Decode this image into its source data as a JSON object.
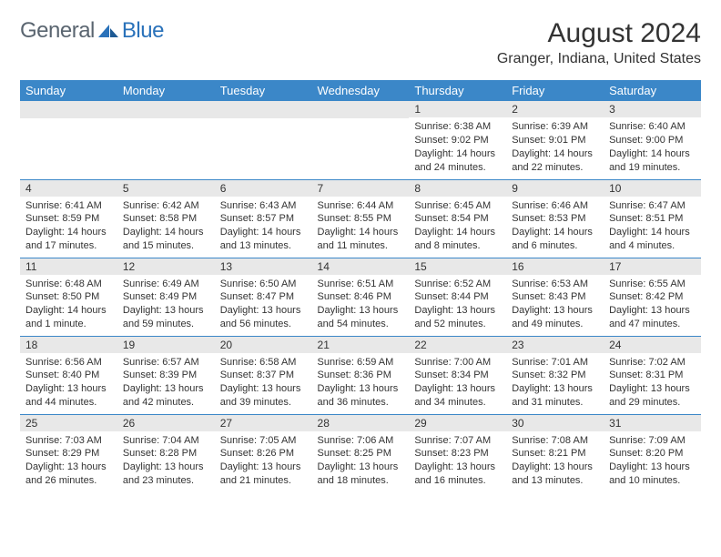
{
  "brand": {
    "general": "General",
    "blue": "Blue"
  },
  "title": "August 2024",
  "location": "Granger, Indiana, United States",
  "header_bg": "#3b87c8",
  "header_fg": "#ffffff",
  "daynum_bg": "#e8e8e8",
  "border_color": "#3b87c8",
  "days_of_week": [
    "Sunday",
    "Monday",
    "Tuesday",
    "Wednesday",
    "Thursday",
    "Friday",
    "Saturday"
  ],
  "weeks": [
    [
      {
        "n": "",
        "sunrise": "",
        "sunset": "",
        "daylight": ""
      },
      {
        "n": "",
        "sunrise": "",
        "sunset": "",
        "daylight": ""
      },
      {
        "n": "",
        "sunrise": "",
        "sunset": "",
        "daylight": ""
      },
      {
        "n": "",
        "sunrise": "",
        "sunset": "",
        "daylight": ""
      },
      {
        "n": "1",
        "sunrise": "Sunrise: 6:38 AM",
        "sunset": "Sunset: 9:02 PM",
        "daylight": "Daylight: 14 hours and 24 minutes."
      },
      {
        "n": "2",
        "sunrise": "Sunrise: 6:39 AM",
        "sunset": "Sunset: 9:01 PM",
        "daylight": "Daylight: 14 hours and 22 minutes."
      },
      {
        "n": "3",
        "sunrise": "Sunrise: 6:40 AM",
        "sunset": "Sunset: 9:00 PM",
        "daylight": "Daylight: 14 hours and 19 minutes."
      }
    ],
    [
      {
        "n": "4",
        "sunrise": "Sunrise: 6:41 AM",
        "sunset": "Sunset: 8:59 PM",
        "daylight": "Daylight: 14 hours and 17 minutes."
      },
      {
        "n": "5",
        "sunrise": "Sunrise: 6:42 AM",
        "sunset": "Sunset: 8:58 PM",
        "daylight": "Daylight: 14 hours and 15 minutes."
      },
      {
        "n": "6",
        "sunrise": "Sunrise: 6:43 AM",
        "sunset": "Sunset: 8:57 PM",
        "daylight": "Daylight: 14 hours and 13 minutes."
      },
      {
        "n": "7",
        "sunrise": "Sunrise: 6:44 AM",
        "sunset": "Sunset: 8:55 PM",
        "daylight": "Daylight: 14 hours and 11 minutes."
      },
      {
        "n": "8",
        "sunrise": "Sunrise: 6:45 AM",
        "sunset": "Sunset: 8:54 PM",
        "daylight": "Daylight: 14 hours and 8 minutes."
      },
      {
        "n": "9",
        "sunrise": "Sunrise: 6:46 AM",
        "sunset": "Sunset: 8:53 PM",
        "daylight": "Daylight: 14 hours and 6 minutes."
      },
      {
        "n": "10",
        "sunrise": "Sunrise: 6:47 AM",
        "sunset": "Sunset: 8:51 PM",
        "daylight": "Daylight: 14 hours and 4 minutes."
      }
    ],
    [
      {
        "n": "11",
        "sunrise": "Sunrise: 6:48 AM",
        "sunset": "Sunset: 8:50 PM",
        "daylight": "Daylight: 14 hours and 1 minute."
      },
      {
        "n": "12",
        "sunrise": "Sunrise: 6:49 AM",
        "sunset": "Sunset: 8:49 PM",
        "daylight": "Daylight: 13 hours and 59 minutes."
      },
      {
        "n": "13",
        "sunrise": "Sunrise: 6:50 AM",
        "sunset": "Sunset: 8:47 PM",
        "daylight": "Daylight: 13 hours and 56 minutes."
      },
      {
        "n": "14",
        "sunrise": "Sunrise: 6:51 AM",
        "sunset": "Sunset: 8:46 PM",
        "daylight": "Daylight: 13 hours and 54 minutes."
      },
      {
        "n": "15",
        "sunrise": "Sunrise: 6:52 AM",
        "sunset": "Sunset: 8:44 PM",
        "daylight": "Daylight: 13 hours and 52 minutes."
      },
      {
        "n": "16",
        "sunrise": "Sunrise: 6:53 AM",
        "sunset": "Sunset: 8:43 PM",
        "daylight": "Daylight: 13 hours and 49 minutes."
      },
      {
        "n": "17",
        "sunrise": "Sunrise: 6:55 AM",
        "sunset": "Sunset: 8:42 PM",
        "daylight": "Daylight: 13 hours and 47 minutes."
      }
    ],
    [
      {
        "n": "18",
        "sunrise": "Sunrise: 6:56 AM",
        "sunset": "Sunset: 8:40 PM",
        "daylight": "Daylight: 13 hours and 44 minutes."
      },
      {
        "n": "19",
        "sunrise": "Sunrise: 6:57 AM",
        "sunset": "Sunset: 8:39 PM",
        "daylight": "Daylight: 13 hours and 42 minutes."
      },
      {
        "n": "20",
        "sunrise": "Sunrise: 6:58 AM",
        "sunset": "Sunset: 8:37 PM",
        "daylight": "Daylight: 13 hours and 39 minutes."
      },
      {
        "n": "21",
        "sunrise": "Sunrise: 6:59 AM",
        "sunset": "Sunset: 8:36 PM",
        "daylight": "Daylight: 13 hours and 36 minutes."
      },
      {
        "n": "22",
        "sunrise": "Sunrise: 7:00 AM",
        "sunset": "Sunset: 8:34 PM",
        "daylight": "Daylight: 13 hours and 34 minutes."
      },
      {
        "n": "23",
        "sunrise": "Sunrise: 7:01 AM",
        "sunset": "Sunset: 8:32 PM",
        "daylight": "Daylight: 13 hours and 31 minutes."
      },
      {
        "n": "24",
        "sunrise": "Sunrise: 7:02 AM",
        "sunset": "Sunset: 8:31 PM",
        "daylight": "Daylight: 13 hours and 29 minutes."
      }
    ],
    [
      {
        "n": "25",
        "sunrise": "Sunrise: 7:03 AM",
        "sunset": "Sunset: 8:29 PM",
        "daylight": "Daylight: 13 hours and 26 minutes."
      },
      {
        "n": "26",
        "sunrise": "Sunrise: 7:04 AM",
        "sunset": "Sunset: 8:28 PM",
        "daylight": "Daylight: 13 hours and 23 minutes."
      },
      {
        "n": "27",
        "sunrise": "Sunrise: 7:05 AM",
        "sunset": "Sunset: 8:26 PM",
        "daylight": "Daylight: 13 hours and 21 minutes."
      },
      {
        "n": "28",
        "sunrise": "Sunrise: 7:06 AM",
        "sunset": "Sunset: 8:25 PM",
        "daylight": "Daylight: 13 hours and 18 minutes."
      },
      {
        "n": "29",
        "sunrise": "Sunrise: 7:07 AM",
        "sunset": "Sunset: 8:23 PM",
        "daylight": "Daylight: 13 hours and 16 minutes."
      },
      {
        "n": "30",
        "sunrise": "Sunrise: 7:08 AM",
        "sunset": "Sunset: 8:21 PM",
        "daylight": "Daylight: 13 hours and 13 minutes."
      },
      {
        "n": "31",
        "sunrise": "Sunrise: 7:09 AM",
        "sunset": "Sunset: 8:20 PM",
        "daylight": "Daylight: 13 hours and 10 minutes."
      }
    ]
  ]
}
